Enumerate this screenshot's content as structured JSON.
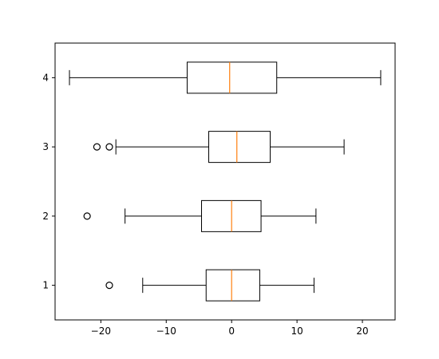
{
  "chart_data": {
    "type": "boxplot",
    "orientation": "horizontal",
    "title": "",
    "xlabel": "",
    "ylabel": "",
    "xlim": [
      -27,
      25
    ],
    "ylim": [
      0.5,
      4.5
    ],
    "grid": false,
    "categories": [
      "1",
      "2",
      "3",
      "4"
    ],
    "x_ticks": [
      -20,
      -10,
      0,
      10,
      20
    ],
    "x_tick_labels": [
      "−20",
      "−10",
      "0",
      "10",
      "20"
    ],
    "boxes": [
      {
        "category": "1",
        "whisker_low": -13.6,
        "q1": -3.9,
        "median": 0.0,
        "q3": 4.3,
        "whisker_high": 12.6,
        "outliers": [
          -18.7
        ]
      },
      {
        "category": "2",
        "whisker_low": -16.3,
        "q1": -4.6,
        "median": 0.0,
        "q3": 4.5,
        "whisker_high": 12.9,
        "outliers": [
          -22.1
        ]
      },
      {
        "category": "3",
        "whisker_low": -17.7,
        "q1": -3.5,
        "median": 0.8,
        "q3": 5.9,
        "whisker_high": 17.2,
        "outliers": [
          -20.6,
          -18.7
        ]
      },
      {
        "category": "4",
        "whisker_low": -24.8,
        "q1": -6.8,
        "median": -0.3,
        "q3": 6.9,
        "whisker_high": 22.8,
        "outliers": []
      }
    ],
    "colors": {
      "box": "#000000",
      "median": "#ff7f0e",
      "background": "#ffffff"
    }
  }
}
